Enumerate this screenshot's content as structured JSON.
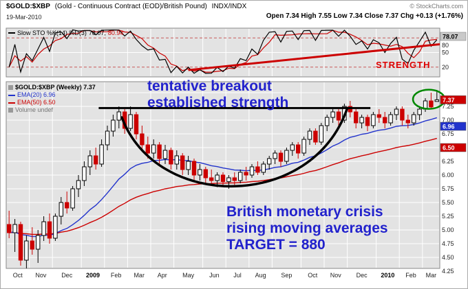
{
  "header": {
    "symbol": "$GOLD:$XBP",
    "description": "(Gold - Continuous Contract (EOD)/British Pound)",
    "exchange": "INDX/INDX",
    "copyright": "© StockCharts.com",
    "date": "19-Mar-2010",
    "ohlc_line": "Open 7.34 High 7.55 Low 7.34 Close 7.37 Chg +0.13 (+1.76%)"
  },
  "indicator": {
    "legend": "Slow STO %K(14) %D(3)",
    "k_value": "78.07,",
    "d_value": "80.94",
    "annotation": "STRENGTH",
    "axis_labels": {
      "last": "78.07",
      "upper": "80",
      "mid": "50",
      "lower": "20"
    }
  },
  "main": {
    "legend": {
      "symbol": "$GOLD:$XBP (Weekly) 7.37",
      "ema20": "EMA(20) 6.96",
      "ema50": "EMA(50) 6.50",
      "volume": "Volume undef"
    },
    "annotations": {
      "breakout": "tentative breakout\nestablished strength",
      "crisis": "British monetary crisis\nrising moving averages\nTARGET = 880"
    },
    "price_box": "7.37",
    "ema20_box": "6.96",
    "ema50_box": "6.50"
  },
  "chart_data": {
    "type": "candlestick",
    "title": "$GOLD:$XBP (Weekly) 7.37",
    "timeframe": "weekly",
    "xlabel": "",
    "ylabel": "",
    "ylim": [
      4.3,
      7.7
    ],
    "last": {
      "open": 7.34,
      "high": 7.55,
      "low": 7.34,
      "close": 7.37,
      "change": "+0.13 (+1.76%)"
    },
    "colors": {
      "up": "#ffffff",
      "down": "#cc0000",
      "k_line": "#000000",
      "d_line": "#cc0000",
      "trend_black": "#000000",
      "ellipse_green": "#008800",
      "strength_red": "#cc0000",
      "annotation_blue": "#2222cc",
      "plot_bg": "#e3e3e3"
    },
    "x_months": [
      {
        "label": "Oct",
        "weeks": 4
      },
      {
        "label": "Nov",
        "weeks": 4
      },
      {
        "label": "Dec",
        "weeks": 5
      },
      {
        "label": "2009",
        "weeks": 4,
        "bold": true
      },
      {
        "label": "Feb",
        "weeks": 4
      },
      {
        "label": "Mar",
        "weeks": 4
      },
      {
        "label": "Apr",
        "weeks": 4
      },
      {
        "label": "May",
        "weeks": 5
      },
      {
        "label": "Jun",
        "weeks": 4
      },
      {
        "label": "Jul",
        "weeks": 4
      },
      {
        "label": "Aug",
        "weeks": 4
      },
      {
        "label": "Sep",
        "weeks": 5
      },
      {
        "label": "Oct",
        "weeks": 4
      },
      {
        "label": "Nov",
        "weeks": 4
      },
      {
        "label": "Dec",
        "weeks": 5
      },
      {
        "label": "2010",
        "weeks": 4,
        "bold": true
      },
      {
        "label": "Feb",
        "weeks": 4
      },
      {
        "label": "Mar",
        "weeks": 3
      }
    ],
    "y_ticks": [
      7.25,
      7.0,
      6.75,
      6.5,
      6.25,
      6.0,
      5.75,
      5.5,
      5.25,
      5.0,
      4.75,
      4.5,
      4.25
    ],
    "y_grid": [
      7.5,
      7.25,
      7.0,
      6.75,
      6.5,
      6.25,
      6.0,
      5.75,
      5.5,
      5.25,
      5.0,
      4.75,
      4.5,
      4.25
    ],
    "candles": [
      [
        5.1,
        5.35,
        4.85,
        4.95
      ],
      [
        4.95,
        5.2,
        4.6,
        5.1
      ],
      [
        5.1,
        5.15,
        4.35,
        4.45
      ],
      [
        4.45,
        4.9,
        4.3,
        4.8
      ],
      [
        4.8,
        5.05,
        4.55,
        4.65
      ],
      [
        4.65,
        5.0,
        4.4,
        4.9
      ],
      [
        4.9,
        5.25,
        4.8,
        5.15
      ],
      [
        5.15,
        5.3,
        4.75,
        4.85
      ],
      [
        4.85,
        5.3,
        4.8,
        5.25
      ],
      [
        5.25,
        5.6,
        5.1,
        5.5
      ],
      [
        5.5,
        5.7,
        5.3,
        5.4
      ],
      [
        5.4,
        5.8,
        5.35,
        5.75
      ],
      [
        5.75,
        6.0,
        5.6,
        5.9
      ],
      [
        5.9,
        6.25,
        5.8,
        6.15
      ],
      [
        6.15,
        6.45,
        6.0,
        6.35
      ],
      [
        6.35,
        6.5,
        6.1,
        6.2
      ],
      [
        6.2,
        6.65,
        6.15,
        6.55
      ],
      [
        6.55,
        6.9,
        6.45,
        6.8
      ],
      [
        6.8,
        7.1,
        6.7,
        7.0
      ],
      [
        7.0,
        7.25,
        6.85,
        7.15
      ],
      [
        7.15,
        7.2,
        6.75,
        6.85
      ],
      [
        6.85,
        7.25,
        6.8,
        7.1
      ],
      [
        7.1,
        7.15,
        6.65,
        6.75
      ],
      [
        6.75,
        6.9,
        6.45,
        6.55
      ],
      [
        6.55,
        6.7,
        6.3,
        6.4
      ],
      [
        6.4,
        6.65,
        6.3,
        6.55
      ],
      [
        6.55,
        6.6,
        6.2,
        6.3
      ],
      [
        6.3,
        6.55,
        6.2,
        6.45
      ],
      [
        6.45,
        6.5,
        6.1,
        6.2
      ],
      [
        6.2,
        6.45,
        6.1,
        6.35
      ],
      [
        6.35,
        6.4,
        6.0,
        6.1
      ],
      [
        6.1,
        6.35,
        6.0,
        6.25
      ],
      [
        6.25,
        6.3,
        5.9,
        6.0
      ],
      [
        6.0,
        6.2,
        5.9,
        6.1
      ],
      [
        6.1,
        6.15,
        5.85,
        5.95
      ],
      [
        5.95,
        6.1,
        5.8,
        5.9
      ],
      [
        5.9,
        6.05,
        5.78,
        6.0
      ],
      [
        6.0,
        6.05,
        5.8,
        5.88
      ],
      [
        5.88,
        6.0,
        5.75,
        5.95
      ],
      [
        5.95,
        6.05,
        5.82,
        5.9
      ],
      [
        5.9,
        6.1,
        5.85,
        6.05
      ],
      [
        6.05,
        6.15,
        5.9,
        6.0
      ],
      [
        6.0,
        6.2,
        5.95,
        6.15
      ],
      [
        6.15,
        6.25,
        6.0,
        6.05
      ],
      [
        6.05,
        6.25,
        6.0,
        6.2
      ],
      [
        6.2,
        6.35,
        6.1,
        6.3
      ],
      [
        6.3,
        6.45,
        6.2,
        6.4
      ],
      [
        6.4,
        6.45,
        6.15,
        6.25
      ],
      [
        6.25,
        6.5,
        6.2,
        6.45
      ],
      [
        6.45,
        6.6,
        6.35,
        6.55
      ],
      [
        6.55,
        6.6,
        6.3,
        6.4
      ],
      [
        6.4,
        6.7,
        6.35,
        6.65
      ],
      [
        6.65,
        6.85,
        6.55,
        6.8
      ],
      [
        6.8,
        6.85,
        6.55,
        6.6
      ],
      [
        6.6,
        6.95,
        6.55,
        6.9
      ],
      [
        6.9,
        7.1,
        6.8,
        7.05
      ],
      [
        7.05,
        7.2,
        6.95,
        7.15
      ],
      [
        7.15,
        7.2,
        6.9,
        7.0
      ],
      [
        7.0,
        7.3,
        6.95,
        7.25
      ],
      [
        7.25,
        7.35,
        7.05,
        7.15
      ],
      [
        7.15,
        7.2,
        6.85,
        6.95
      ],
      [
        6.95,
        7.1,
        6.85,
        7.05
      ],
      [
        7.05,
        7.1,
        6.8,
        6.9
      ],
      [
        6.9,
        7.15,
        6.85,
        7.1
      ],
      [
        7.1,
        7.2,
        6.95,
        7.05
      ],
      [
        7.05,
        7.15,
        6.85,
        6.95
      ],
      [
        6.95,
        7.15,
        6.9,
        7.1
      ],
      [
        7.1,
        7.25,
        7.0,
        7.2
      ],
      [
        7.2,
        7.25,
        6.9,
        7.0
      ],
      [
        7.0,
        7.1,
        6.85,
        6.95
      ],
      [
        6.95,
        7.15,
        6.9,
        7.1
      ],
      [
        7.1,
        7.25,
        7.0,
        7.2
      ],
      [
        7.2,
        7.4,
        7.15,
        7.35
      ],
      [
        7.35,
        7.5,
        7.2,
        7.24
      ],
      [
        7.34,
        7.55,
        7.34,
        7.37
      ]
    ],
    "overlays": [
      {
        "name": "EMA(20)",
        "period": 20,
        "color": "#2233cc",
        "last": 6.96
      },
      {
        "name": "EMA(50)",
        "period": 50,
        "color": "#cc0000",
        "last": 6.5
      }
    ],
    "indicator": {
      "name": "Slow STO",
      "k_period": 14,
      "d_period": 3,
      "k_last": 78.07,
      "d_last": 80.94,
      "ylim": [
        0,
        100
      ],
      "bands": [
        80,
        20
      ]
    },
    "annotations": {
      "trendline": {
        "from_week": 16,
        "to_week": 63,
        "price": 7.22
      },
      "cup": {
        "path_weeks": [
          20,
          26,
          53,
          59
        ],
        "path_prices": [
          7.05,
          5.35,
          5.35,
          7.22
        ]
      },
      "ellipse": {
        "week": 72.6,
        "price": 7.38
      },
      "strength_line": {
        "from": [
          31,
          14
        ],
        "to": [
          77,
          70
        ]
      }
    }
  }
}
